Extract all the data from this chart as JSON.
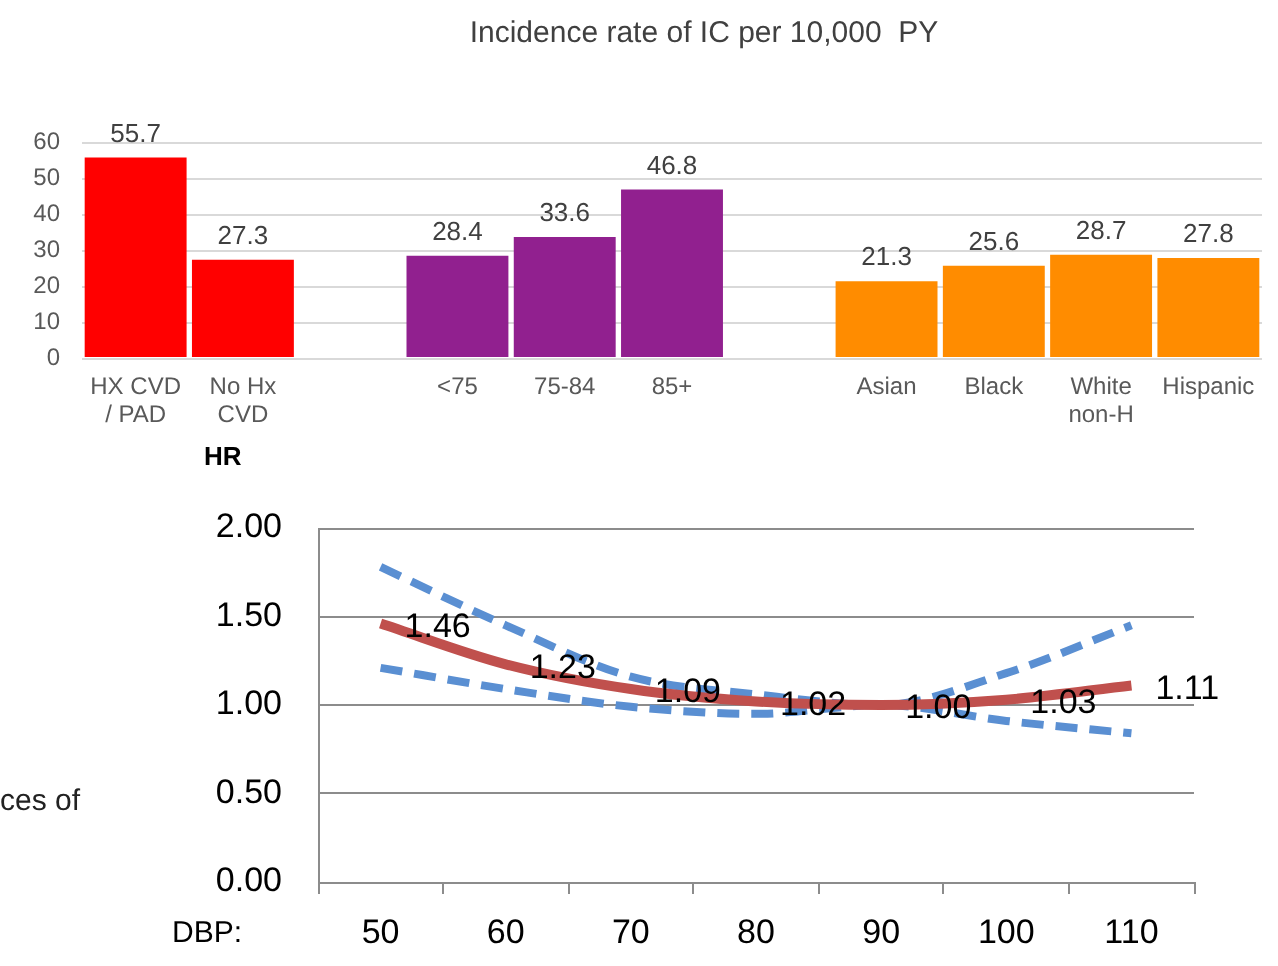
{
  "chart_data": [
    {
      "type": "bar",
      "title": "Incidence rate of IC per 10,000  PY",
      "categories": [
        "HX CVD / PAD",
        "No Hx CVD",
        null,
        "<75",
        "75-84",
        "85+",
        null,
        "Asian",
        "Black",
        "White non-H",
        "Hispanic"
      ],
      "values": [
        55.7,
        27.3,
        null,
        28.4,
        33.6,
        46.8,
        null,
        21.3,
        25.6,
        28.7,
        27.8
      ],
      "colors": [
        "#ff0000",
        "#ff0000",
        null,
        "#91208f",
        "#91208f",
        "#91208f",
        null,
        "#ff8c00",
        "#ff8c00",
        "#ff8c00",
        "#ff8c00"
      ],
      "ylim": [
        0,
        60
      ],
      "yticks": [
        0,
        10,
        20,
        30,
        40,
        50,
        60
      ],
      "grid": "y",
      "data_labels": true
    },
    {
      "type": "line",
      "ylabel": "HR",
      "xlabel": "DBP:",
      "annotations": [
        "ces of"
      ],
      "categories": [
        "50",
        "60",
        "70",
        "80",
        "90",
        "100",
        "110"
      ],
      "series": [
        {
          "color": "#c0504d",
          "line_style": "solid",
          "values": [
            1.46,
            1.23,
            1.09,
            1.02,
            1.0,
            1.03,
            1.11
          ],
          "value_labels": [
            "1.46",
            "1.23",
            "1.09",
            "1.02",
            "1.00",
            "1.03",
            "1.11"
          ]
        },
        {
          "color": "#5a8fd2",
          "line_style": "dashed",
          "values": [
            1.78,
            1.45,
            1.16,
            1.06,
            1.0,
            1.18,
            1.45
          ]
        },
        {
          "color": "#5a8fd2",
          "line_style": "dashed",
          "values": [
            1.21,
            1.09,
            0.99,
            0.95,
            1.0,
            0.91,
            0.84
          ]
        }
      ],
      "ylim": [
        0,
        2
      ],
      "yticks": [
        {
          "value": 0,
          "label": "0.00"
        },
        {
          "value": 0.5,
          "label": "0.50"
        },
        {
          "value": 1,
          "label": "1.00"
        },
        {
          "value": 1.5,
          "label": "1.50"
        },
        {
          "value": 2,
          "label": "2.00"
        }
      ],
      "grid": "y",
      "marker": "none"
    }
  ]
}
